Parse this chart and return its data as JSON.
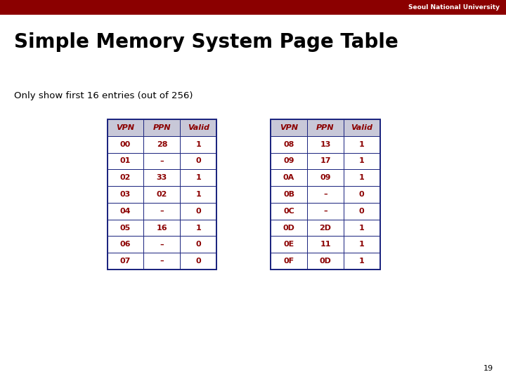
{
  "title": "Simple Memory System Page Table",
  "subtitle": "Only show first 16 entries (out of 256)",
  "cell_text_color": "#8B0000",
  "header_text_color": "#8B0000",
  "table_border_color": "#1A237E",
  "header_bg_color": "#C8C8D8",
  "background_color": "#FFFFFF",
  "slide_number": "19",
  "snu_bar_color": "#8B0000",
  "snu_text": "Seoul National University",
  "left_table": {
    "headers": [
      "VPN",
      "PPN",
      "Valid"
    ],
    "rows": [
      [
        "00",
        "28",
        "1"
      ],
      [
        "01",
        "–",
        "0"
      ],
      [
        "02",
        "33",
        "1"
      ],
      [
        "03",
        "02",
        "1"
      ],
      [
        "04",
        "–",
        "0"
      ],
      [
        "05",
        "16",
        "1"
      ],
      [
        "06",
        "–",
        "0"
      ],
      [
        "07",
        "–",
        "0"
      ]
    ]
  },
  "right_table": {
    "headers": [
      "VPN",
      "PPN",
      "Valid"
    ],
    "rows": [
      [
        "08",
        "13",
        "1"
      ],
      [
        "09",
        "17",
        "1"
      ],
      [
        "0A",
        "09",
        "1"
      ],
      [
        "0B",
        "–",
        "0"
      ],
      [
        "0C",
        "–",
        "0"
      ],
      [
        "0D",
        "2D",
        "1"
      ],
      [
        "0E",
        "11",
        "1"
      ],
      [
        "0F",
        "0D",
        "1"
      ]
    ]
  }
}
